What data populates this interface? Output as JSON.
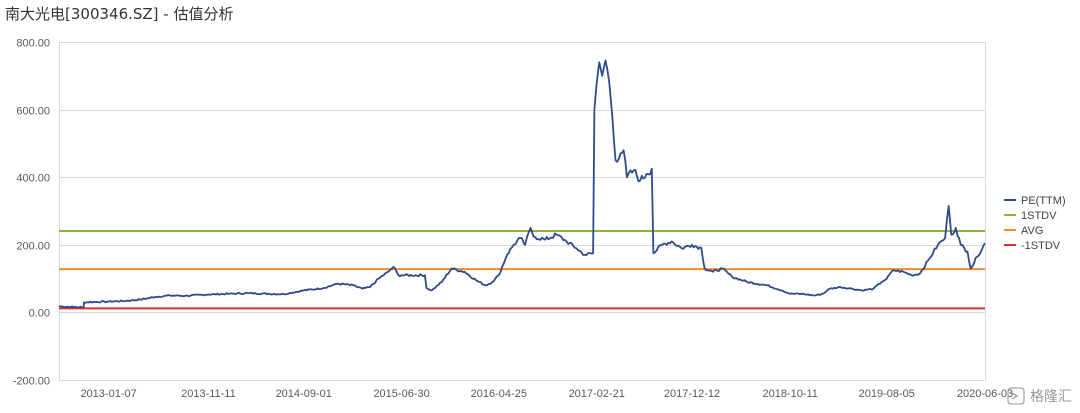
{
  "title": "南大光电[300346.SZ] - 估值分析",
  "watermark": "格隆汇",
  "chart_data": {
    "type": "line",
    "title": "南大光电[300346.SZ] - 估值分析",
    "xlabel": "",
    "ylabel": "",
    "ylim": [
      -200,
      800
    ],
    "yticks": [
      -200,
      0,
      200,
      400,
      600,
      800
    ],
    "ytick_labels": [
      "-200.00",
      "0.00",
      "200.00",
      "400.00",
      "600.00",
      "800.00"
    ],
    "xtick_labels": [
      "2013-01-07",
      "2013-11-11",
      "2014-09-01",
      "2015-06-30",
      "2016-04-25",
      "2017-02-21",
      "2017-12-12",
      "2018-10-11",
      "2019-08-05",
      "2020-06-03"
    ],
    "xlim": [
      "2012-08-07",
      "2020-06-03"
    ],
    "grid": {
      "horizontal": true,
      "vertical": false
    },
    "legend_position": "right",
    "series": [
      {
        "name": "PE(TTM)",
        "color": "#2f4b8c",
        "points": [
          [
            "2012-08-07",
            18
          ],
          [
            "2012-09-20",
            16
          ],
          [
            "2012-10-22",
            15
          ],
          [
            "2012-10-23",
            30
          ],
          [
            "2012-12-01",
            31
          ],
          [
            "2013-01-07",
            32
          ],
          [
            "2013-03-01",
            34
          ],
          [
            "2013-04-15",
            38
          ],
          [
            "2013-06-01",
            46
          ],
          [
            "2013-07-15",
            50
          ],
          [
            "2013-09-01",
            49
          ],
          [
            "2013-11-11",
            53
          ],
          [
            "2014-01-15",
            55
          ],
          [
            "2014-03-15",
            57
          ],
          [
            "2014-05-15",
            55
          ],
          [
            "2014-07-01",
            54
          ],
          [
            "2014-09-01",
            65
          ],
          [
            "2014-11-01",
            72
          ],
          [
            "2014-12-15",
            85
          ],
          [
            "2015-02-01",
            80
          ],
          [
            "2015-03-01",
            70
          ],
          [
            "2015-03-25",
            75
          ],
          [
            "2015-04-20",
            100
          ],
          [
            "2015-05-20",
            120
          ],
          [
            "2015-06-05",
            135
          ],
          [
            "2015-06-20",
            110
          ],
          [
            "2015-06-30",
            110
          ],
          [
            "2015-09-10",
            110
          ],
          [
            "2015-09-15",
            72
          ],
          [
            "2015-10-01",
            65
          ],
          [
            "2015-11-01",
            90
          ],
          [
            "2015-12-01",
            130
          ],
          [
            "2016-01-10",
            120
          ],
          [
            "2016-02-15",
            95
          ],
          [
            "2016-03-15",
            80
          ],
          [
            "2016-04-05",
            90
          ],
          [
            "2016-04-25",
            110
          ],
          [
            "2016-05-20",
            170
          ],
          [
            "2016-06-10",
            200
          ],
          [
            "2016-07-01",
            220
          ],
          [
            "2016-07-15",
            200
          ],
          [
            "2016-08-01",
            250
          ],
          [
            "2016-08-10",
            225
          ],
          [
            "2016-09-15",
            215
          ],
          [
            "2016-10-20",
            230
          ],
          [
            "2016-11-20",
            210
          ],
          [
            "2016-12-20",
            190
          ],
          [
            "2017-01-15",
            170
          ],
          [
            "2017-02-10",
            175
          ],
          [
            "2017-02-14",
            600
          ],
          [
            "2017-02-21",
            680
          ],
          [
            "2017-03-01",
            740
          ],
          [
            "2017-03-10",
            700
          ],
          [
            "2017-03-20",
            745
          ],
          [
            "2017-04-01",
            680
          ],
          [
            "2017-04-10",
            580
          ],
          [
            "2017-04-20",
            450
          ],
          [
            "2017-05-05",
            470
          ],
          [
            "2017-05-15",
            480
          ],
          [
            "2017-05-25",
            400
          ],
          [
            "2017-06-15",
            420
          ],
          [
            "2017-07-05",
            390
          ],
          [
            "2017-07-25",
            410
          ],
          [
            "2017-08-10",
            425
          ],
          [
            "2017-08-15",
            175
          ],
          [
            "2017-09-10",
            200
          ],
          [
            "2017-10-10",
            210
          ],
          [
            "2017-11-10",
            190
          ],
          [
            "2017-12-12",
            200
          ],
          [
            "2018-01-10",
            190
          ],
          [
            "2018-01-20",
            130
          ],
          [
            "2018-02-15",
            120
          ],
          [
            "2018-03-15",
            130
          ],
          [
            "2018-04-15",
            105
          ],
          [
            "2018-06-01",
            90
          ],
          [
            "2018-08-01",
            80
          ],
          [
            "2018-09-15",
            65
          ],
          [
            "2018-10-11",
            55
          ],
          [
            "2018-11-15",
            55
          ],
          [
            "2018-12-25",
            50
          ],
          [
            "2019-01-20",
            55
          ],
          [
            "2019-02-10",
            70
          ],
          [
            "2019-03-15",
            75
          ],
          [
            "2019-04-20",
            70
          ],
          [
            "2019-05-20",
            65
          ],
          [
            "2019-06-25",
            70
          ],
          [
            "2019-07-20",
            90
          ],
          [
            "2019-08-05",
            100
          ],
          [
            "2019-08-25",
            125
          ],
          [
            "2019-09-25",
            120
          ],
          [
            "2019-10-20",
            110
          ],
          [
            "2019-11-15",
            115
          ],
          [
            "2019-12-15",
            160
          ],
          [
            "2020-01-10",
            200
          ],
          [
            "2020-02-01",
            220
          ],
          [
            "2020-02-12",
            315
          ],
          [
            "2020-02-20",
            230
          ],
          [
            "2020-03-05",
            250
          ],
          [
            "2020-03-20",
            200
          ],
          [
            "2020-04-10",
            180
          ],
          [
            "2020-04-20",
            130
          ],
          [
            "2020-05-10",
            165
          ],
          [
            "2020-06-03",
            205
          ]
        ]
      },
      {
        "name": "1STDV",
        "color": "#8fb43a",
        "value": 241
      },
      {
        "name": "AVG",
        "color": "#f48a2a",
        "value": 128
      },
      {
        "name": "-1STDV",
        "color": "#d9302b",
        "value": 12
      }
    ]
  }
}
